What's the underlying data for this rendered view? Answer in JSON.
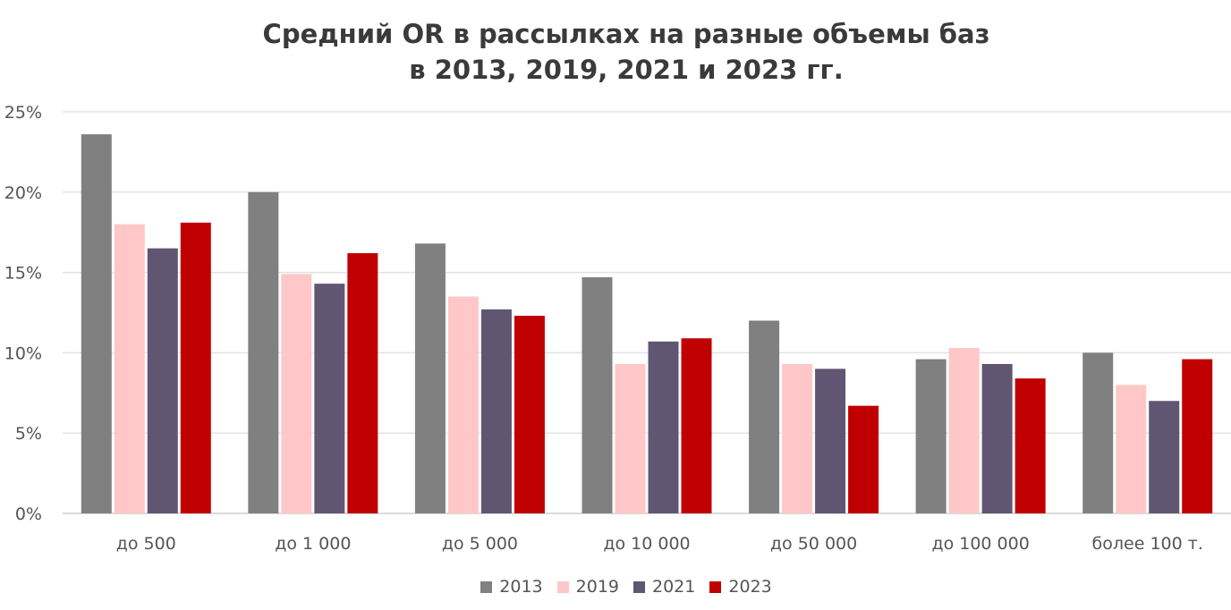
{
  "chart_data": {
    "type": "bar",
    "title": "Средний OR в рассылках на разные объемы баз",
    "subtitle": "в 2013, 2019, 2021 и 2023 гг.",
    "categories": [
      "до 500",
      "до 1 000",
      "до 5 000",
      "до 10 000",
      "до 50 000",
      "до 100 000",
      "более 100 т."
    ],
    "series": [
      {
        "name": "2013",
        "color": "#808080",
        "values": [
          23.6,
          20.0,
          16.8,
          14.7,
          12.0,
          9.6,
          10.0
        ]
      },
      {
        "name": "2019",
        "color": "#ffc7c7",
        "values": [
          18.0,
          14.9,
          13.5,
          9.3,
          9.3,
          10.3,
          8.0
        ]
      },
      {
        "name": "2021",
        "color": "#605672",
        "values": [
          16.5,
          14.3,
          12.7,
          10.7,
          9.0,
          9.3,
          7.0
        ]
      },
      {
        "name": "2023",
        "color": "#c00000",
        "values": [
          18.1,
          16.2,
          12.3,
          10.9,
          6.7,
          8.4,
          9.6
        ]
      }
    ],
    "yticks": [
      "0%",
      "5%",
      "10%",
      "15%",
      "20%",
      "25%"
    ],
    "ylim": [
      0,
      25
    ],
    "grid": true,
    "legend": "bottom"
  }
}
